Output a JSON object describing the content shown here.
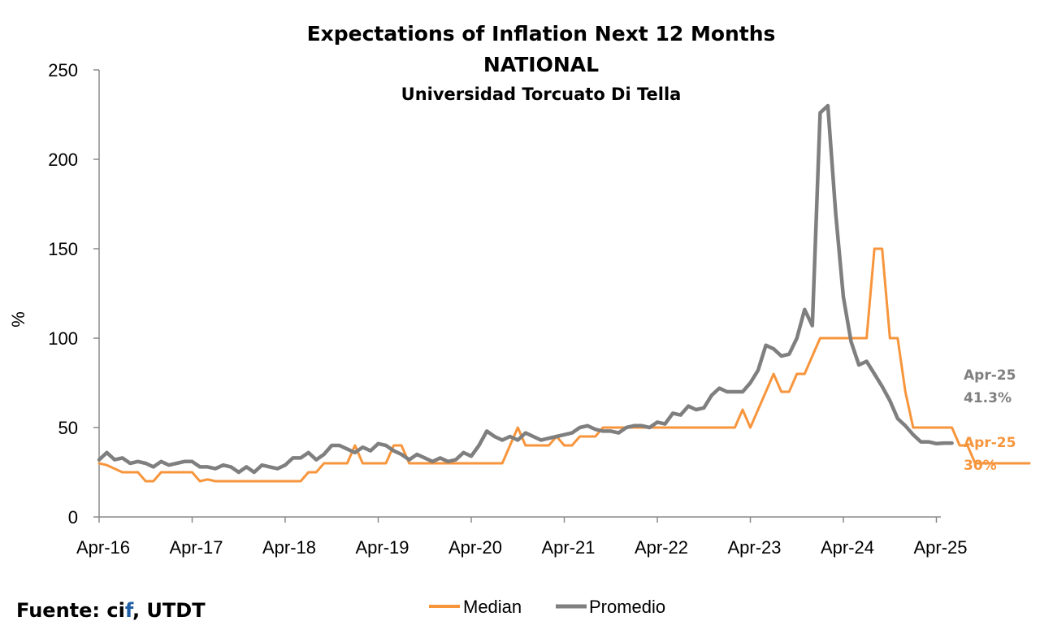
{
  "chart_data": {
    "type": "line",
    "title": "Expectations of Inflation Next 12 Months",
    "subtitle": "NATIONAL",
    "subtitle2": "Universidad Torcuato Di Tella",
    "ylabel": "%",
    "xlabel": "",
    "ylim": [
      0,
      250
    ],
    "yticks": [
      0,
      50,
      100,
      150,
      200,
      250
    ],
    "x_tick_labels": [
      "Apr-16",
      "Apr-17",
      "Apr-18",
      "Apr-19",
      "Apr-20",
      "Apr-21",
      "Apr-22",
      "Apr-23",
      "Apr-24",
      "Apr-25"
    ],
    "x_start": "Apr-16",
    "grid": false,
    "legend_position": "bottom",
    "series": [
      {
        "name": "Median",
        "color": "#f7953c",
        "values": [
          30,
          29,
          27,
          25,
          25,
          25,
          20,
          20,
          25,
          25,
          25,
          25,
          25,
          20,
          21,
          20,
          20,
          20,
          20,
          20,
          20,
          20,
          20,
          20,
          20,
          20,
          20,
          25,
          25,
          30,
          30,
          30,
          30,
          40,
          30,
          30,
          30,
          30,
          40,
          40,
          30,
          30,
          30,
          30,
          30,
          30,
          30,
          30,
          30,
          30,
          30,
          30,
          30,
          40,
          50,
          40,
          40,
          40,
          40,
          45,
          40,
          40,
          45,
          45,
          45,
          50,
          50,
          50,
          50,
          50,
          50,
          50,
          50,
          50,
          50,
          50,
          50,
          50,
          50,
          50,
          50,
          50,
          50,
          60,
          50,
          60,
          70,
          80,
          70,
          70,
          80,
          80,
          90,
          100,
          100,
          100,
          100,
          100,
          100,
          100,
          150,
          150,
          100,
          100,
          70,
          50,
          50,
          50,
          50,
          50,
          50,
          40,
          40,
          30,
          30,
          30,
          30,
          30,
          30,
          30,
          30
        ]
      },
      {
        "name": "Promedio",
        "color": "#7f7f7f",
        "values": [
          32,
          36,
          32,
          33,
          30,
          31,
          30,
          28,
          31,
          29,
          30,
          31,
          31,
          28,
          28,
          27,
          29,
          28,
          25,
          28,
          25,
          29,
          28,
          27,
          29,
          33,
          33,
          36,
          32,
          35,
          40,
          40,
          38,
          36,
          39,
          37,
          41,
          40,
          37,
          35,
          32,
          35,
          33,
          31,
          33,
          31,
          32,
          36,
          34,
          40,
          48,
          45,
          43,
          45,
          43,
          47,
          45,
          43,
          44,
          45,
          46,
          47,
          50,
          51,
          49,
          48,
          48,
          47,
          50,
          51,
          51,
          50,
          53,
          52,
          58,
          57,
          62,
          60,
          61,
          68,
          72,
          70,
          70,
          70,
          75,
          82,
          96,
          94,
          90,
          91,
          100,
          116,
          107,
          226,
          230,
          170,
          123,
          98,
          85,
          87,
          80,
          73,
          65,
          55,
          51,
          46,
          42,
          42,
          41,
          41.3,
          41.3
        ]
      }
    ],
    "annotations": {
      "promedio_date": "Apr-25",
      "promedio_value": "41.3%",
      "median_date": "Apr-25",
      "median_value": "30%"
    }
  },
  "source": {
    "prefix": "Fuente: ci",
    "highlight": "f",
    "suffix": ", UTDT"
  }
}
